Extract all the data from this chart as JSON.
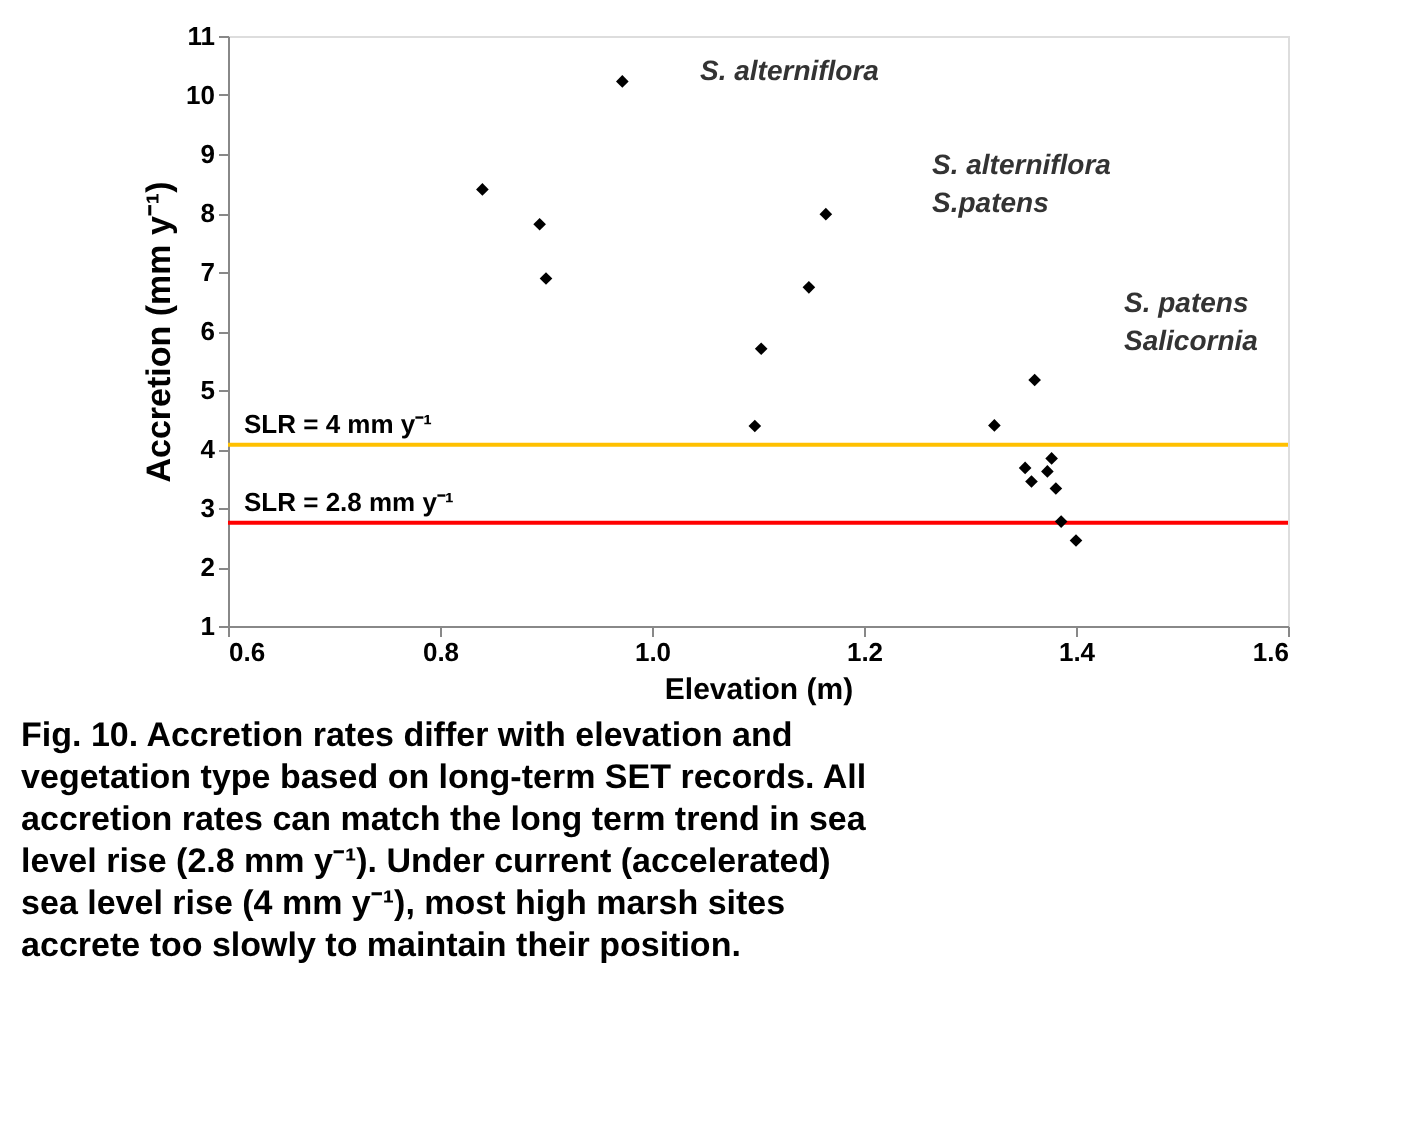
{
  "chart_data": {
    "type": "scatter",
    "xlabel": "Elevation (m)",
    "ylabel": "Accretion (mm y⁻¹)",
    "x": [
      0.84,
      0.894,
      0.9,
      0.972,
      1.097,
      1.103,
      1.148,
      1.164,
      1.361,
      1.323,
      1.377,
      1.352,
      1.373,
      1.358,
      1.381,
      1.386,
      1.4
    ],
    "values": [
      8.4,
      7.81,
      6.89,
      10.23,
      4.39,
      5.7,
      6.74,
      7.98,
      5.17,
      4.4,
      3.84,
      3.68,
      3.62,
      3.45,
      3.33,
      2.77,
      2.45
    ],
    "color": "#000000",
    "marker": "diamond",
    "xlim": [
      0.6,
      1.6
    ],
    "ylim": [
      1,
      11
    ],
    "xticks": [
      0.6,
      0.8,
      {
        "value": 1,
        "label": "1.0"
      },
      1.2,
      1.4,
      1.6
    ],
    "yticks": [
      1,
      2,
      3,
      4,
      5,
      6,
      7,
      8,
      9,
      10,
      11
    ],
    "grid": false,
    "ref_lines": [
      {
        "axis": "y",
        "value": 4.07,
        "label": "SLR = 4 mm y⁻¹",
        "color": "#ffc000"
      },
      {
        "axis": "y",
        "value": 2.75,
        "label": "SLR = 2.8 mm y⁻¹",
        "color": "#ff0000"
      }
    ],
    "annotations": [
      "S. alterniflora",
      "S. alterniflora\nS.patens",
      "S. patens\nSalicornia",
      "Fig. 10. Accretion rates differ with elevation and vegetation type based on long-term SET records. All accretion rates can match the long term trend in sea level rise (2.8 mm y⁻¹). Under current (accelerated) sea level rise (4 mm y⁻¹), most high marsh sites accrete too slowly to maintain their position."
    ]
  }
}
